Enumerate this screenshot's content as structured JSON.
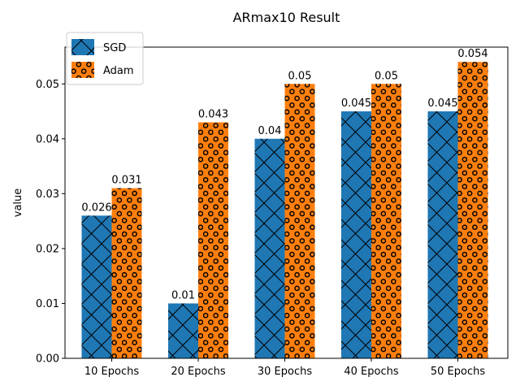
{
  "chart_data": {
    "type": "bar",
    "title": "ARmax10 Result",
    "xlabel": "",
    "ylabel": "value",
    "categories": [
      "10 Epochs",
      "20 Epochs",
      "30 Epochs",
      "40 Epochs",
      "50 Epochs"
    ],
    "series": [
      {
        "name": "SGD",
        "color": "#1f77b4",
        "hatch": "cross-diagonal",
        "values": [
          0.026,
          0.01,
          0.04,
          0.045,
          0.045
        ],
        "labels": [
          "0.026",
          "0.01",
          "0.04",
          "0.045",
          "0.045"
        ]
      },
      {
        "name": "Adam",
        "color": "#ff7f0e",
        "hatch": "circles",
        "values": [
          0.031,
          0.043,
          0.05,
          0.05,
          0.054
        ],
        "labels": [
          "0.031",
          "0.043",
          "0.05",
          "0.05",
          "0.054"
        ]
      }
    ],
    "ylim": [
      0,
      0.0567
    ],
    "yticks": [
      0.0,
      0.01,
      0.02,
      0.03,
      0.04,
      0.05
    ],
    "ytick_labels": [
      "0.00",
      "0.01",
      "0.02",
      "0.03",
      "0.04",
      "0.05"
    ],
    "legend_position": "upper-left",
    "grid": false
  }
}
